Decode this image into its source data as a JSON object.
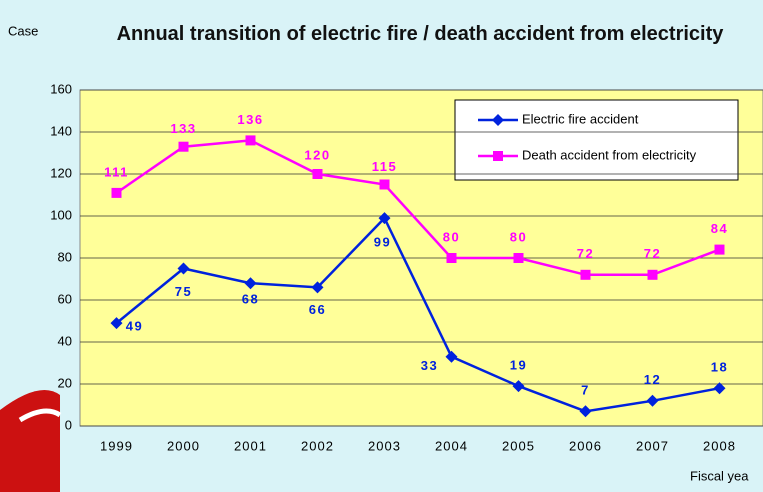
{
  "chart_data": {
    "type": "line",
    "title": "Annual transition of electric fire / death accident from electricity",
    "y_label": "Case",
    "x_label": "Fiscal yea",
    "categories": [
      "1999",
      "2000",
      "2001",
      "2002",
      "2003",
      "2004",
      "2005",
      "2006",
      "2007",
      "2008"
    ],
    "series": [
      {
        "name": "Electric fire accident",
        "color": "#0022dd",
        "marker": "diamond",
        "values": [
          49,
          75,
          68,
          66,
          99,
          33,
          19,
          7,
          12,
          18
        ]
      },
      {
        "name": "Death accident from electricity",
        "color": "#ff00ff",
        "marker": "square",
        "values": [
          111,
          133,
          136,
          120,
          115,
          80,
          80,
          72,
          72,
          84
        ]
      }
    ],
    "ylim": [
      0,
      160
    ],
    "yticks": [
      0,
      20,
      40,
      60,
      80,
      100,
      120,
      140,
      160
    ],
    "grid": true,
    "legend": "top-right"
  }
}
